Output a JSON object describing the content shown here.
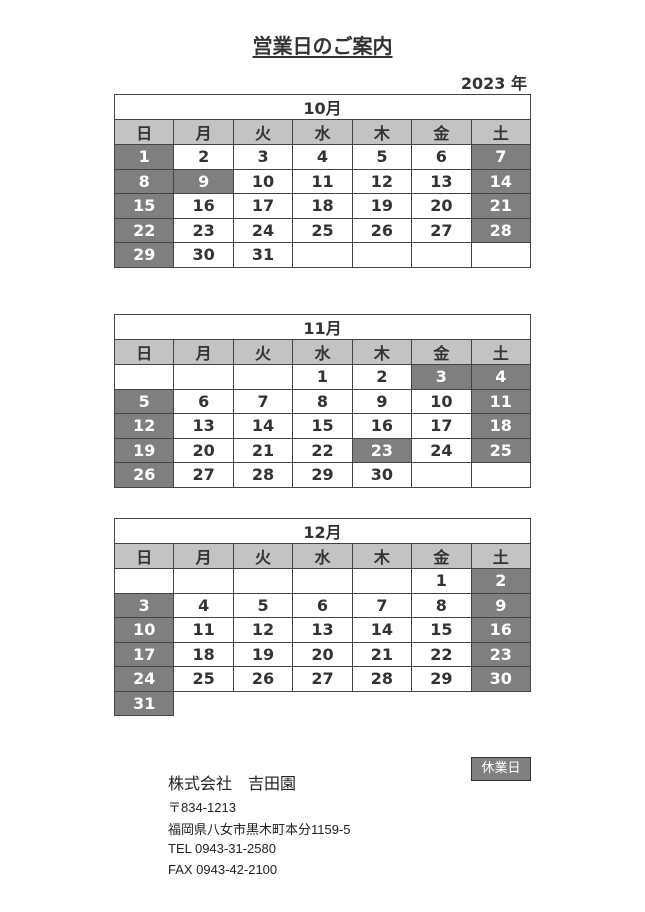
{
  "title": "営業日のご案内",
  "year": "2023 年",
  "weekdays": [
    "日",
    "月",
    "火",
    "水",
    "木",
    "金",
    "土"
  ],
  "colors": {
    "closed": "#7f7f7f",
    "header": "#c3c3c3"
  },
  "months": [
    {
      "label": "10月",
      "weeks": [
        [
          1,
          2,
          3,
          4,
          5,
          6,
          7
        ],
        [
          8,
          9,
          10,
          11,
          12,
          13,
          14
        ],
        [
          15,
          16,
          17,
          18,
          19,
          20,
          21
        ],
        [
          22,
          23,
          24,
          25,
          26,
          27,
          28
        ],
        [
          29,
          30,
          31,
          null,
          null,
          null,
          null
        ]
      ],
      "closed": [
        1,
        7,
        8,
        9,
        14,
        15,
        21,
        22,
        28,
        29
      ]
    },
    {
      "label": "11月",
      "weeks": [
        [
          null,
          null,
          null,
          1,
          2,
          3,
          4
        ],
        [
          5,
          6,
          7,
          8,
          9,
          10,
          11
        ],
        [
          12,
          13,
          14,
          15,
          16,
          17,
          18
        ],
        [
          19,
          20,
          21,
          22,
          23,
          24,
          25
        ],
        [
          26,
          27,
          28,
          29,
          30,
          null,
          null
        ]
      ],
      "closed": [
        3,
        4,
        5,
        11,
        12,
        18,
        19,
        23,
        25,
        26
      ]
    },
    {
      "label": "12月",
      "weeks": [
        [
          null,
          null,
          null,
          null,
          null,
          1,
          2
        ],
        [
          3,
          4,
          5,
          6,
          7,
          8,
          9
        ],
        [
          10,
          11,
          12,
          13,
          14,
          15,
          16
        ],
        [
          17,
          18,
          19,
          20,
          21,
          22,
          23
        ],
        [
          24,
          25,
          26,
          27,
          28,
          29,
          30
        ],
        [
          31
        ]
      ],
      "closed": [
        2,
        3,
        9,
        10,
        16,
        17,
        23,
        24,
        30,
        31
      ]
    }
  ],
  "legend": "休業日",
  "company": {
    "name": "株式会社　吉田園",
    "postal": "〒834-1213",
    "address": "福岡県八女市黒木町本分1159-5",
    "tel": "TEL 0943-31-2580",
    "fax": "FAX 0943-42-2100"
  }
}
